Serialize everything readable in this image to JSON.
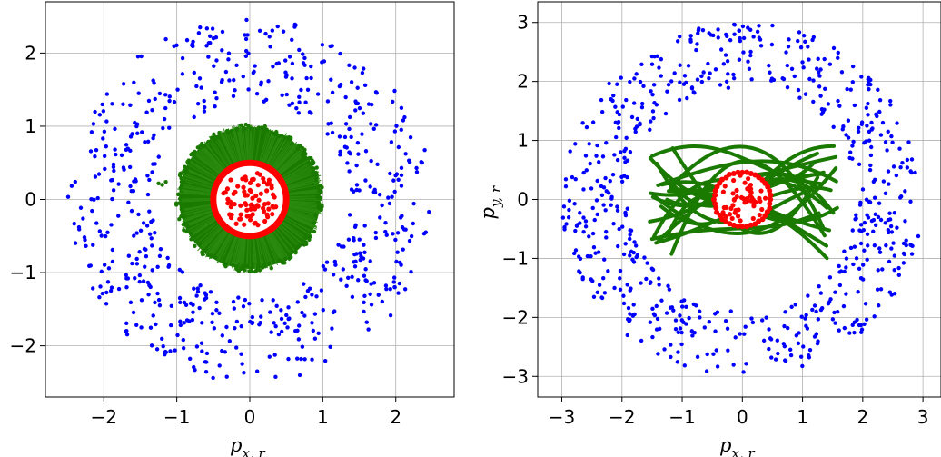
{
  "chart_data": [
    {
      "type": "scatter",
      "title": "",
      "xlabel": "p_{x,r}",
      "xlabel_base": "p",
      "xlabel_sub": "x, r",
      "ylabel": "",
      "xlim": [
        -2.8,
        2.8
      ],
      "ylim": [
        -2.7,
        2.7
      ],
      "xticks": [
        -2,
        -1,
        0,
        1,
        2
      ],
      "yticks": [
        -2,
        -1,
        0,
        1,
        2
      ],
      "xtick_labels": [
        "−2",
        "−1",
        "0",
        "1",
        "2"
      ],
      "ytick_labels": [
        "−2",
        "−1",
        "0",
        "1",
        "2"
      ],
      "grid": true,
      "series": [
        {
          "color": "#0000ff",
          "marker": "dot",
          "shape": "annulus",
          "r_inner": 1.35,
          "r_outer": 2.5,
          "count": 620
        },
        {
          "color": "#1a7a00",
          "marker": "dense-disk",
          "center": [
            0.0,
            0.02
          ],
          "radius": 1.0,
          "stray_points": [
            [
              -1.25,
              0.22
            ],
            [
              -1.2,
              0.2
            ],
            [
              -1.15,
              0.24
            ]
          ]
        },
        {
          "color": "#ff0000",
          "marker": "ring",
          "center": [
            0.0,
            0.0
          ],
          "radius": 0.5
        },
        {
          "color": "#ff0000",
          "marker": "dot",
          "shape": "disk",
          "radius": 0.38,
          "count": 80
        }
      ]
    },
    {
      "type": "scatter",
      "title": "",
      "xlabel": "p_{x,r}",
      "xlabel_base": "p",
      "xlabel_sub": "x, r",
      "ylabel": "p_{y,r}",
      "ylabel_base": "p",
      "ylabel_sub": "y, r",
      "xlim": [
        -3.4,
        3.3
      ],
      "ylim": [
        -3.35,
        3.35
      ],
      "xticks": [
        -3,
        -2,
        -1,
        0,
        1,
        2,
        3
      ],
      "yticks": [
        -3,
        -2,
        -1,
        0,
        1,
        2,
        3
      ],
      "xtick_labels": [
        "−3",
        "−2",
        "−1",
        "0",
        "1",
        "2",
        "3"
      ],
      "ytick_labels": [
        "−3",
        "−2",
        "−1",
        "0",
        "1",
        "2",
        "3"
      ],
      "grid": true,
      "series": [
        {
          "color": "#0000ff",
          "marker": "dot",
          "shape": "annulus",
          "r_inner": 1.9,
          "r_outer": 3.0,
          "count": 650
        },
        {
          "color": "#1a7a00",
          "marker": "trajectories",
          "count": 22,
          "x_range": [
            -1.6,
            1.6
          ],
          "y_range": [
            -1.1,
            1.25
          ]
        },
        {
          "color": "#ff0000",
          "marker": "dot",
          "shape": "disk-with-ring",
          "radius": 0.48,
          "count": 90
        }
      ]
    }
  ]
}
